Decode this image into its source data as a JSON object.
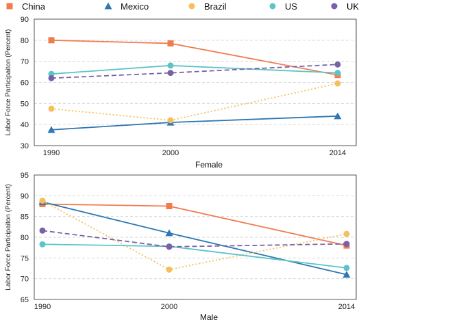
{
  "legend": [
    {
      "name": "China",
      "color": "#F07C4E",
      "marker": "square"
    },
    {
      "name": "Mexico",
      "color": "#2E77B3",
      "marker": "triangle"
    },
    {
      "name": "Brazil",
      "color": "#F5BF5A",
      "marker": "circle"
    },
    {
      "name": "US",
      "color": "#5CC3C7",
      "marker": "circle"
    },
    {
      "name": "UK",
      "color": "#7A60A8",
      "marker": "circle"
    }
  ],
  "chart_data": [
    {
      "type": "line",
      "xlabel": "Female",
      "ylabel": "Labor Force Participaiton (Percent)",
      "categories": [
        "1990",
        "2000",
        "2014"
      ],
      "x": [
        1990,
        2000,
        2014
      ],
      "ylim": [
        30,
        90
      ],
      "yticks": [
        30,
        40,
        50,
        60,
        70,
        80,
        90
      ],
      "grid": true,
      "series": [
        {
          "name": "China",
          "color": "#F07C4E",
          "marker": "square",
          "dash": "solid",
          "values": [
            80,
            78.5,
            63.5
          ]
        },
        {
          "name": "Mexico",
          "color": "#2E77B3",
          "marker": "triangle",
          "dash": "solid",
          "values": [
            37.5,
            41,
            44
          ]
        },
        {
          "name": "Brazil",
          "color": "#F5BF5A",
          "marker": "circle",
          "dash": "dotted",
          "values": [
            47.5,
            42,
            59.5
          ]
        },
        {
          "name": "US",
          "color": "#5CC3C7",
          "marker": "circle",
          "dash": "solid",
          "values": [
            64,
            68,
            64.5
          ]
        },
        {
          "name": "UK",
          "color": "#7A60A8",
          "marker": "circle",
          "dash": "dashed",
          "values": [
            62,
            64.5,
            68.5
          ]
        }
      ]
    },
    {
      "type": "line",
      "xlabel": "Male",
      "ylabel": "Labor Force Participaiton (Percent)",
      "categories": [
        "1990",
        "2000",
        "2014"
      ],
      "x": [
        1990,
        2000,
        2014
      ],
      "ylim": [
        65,
        95
      ],
      "yticks": [
        65,
        70,
        75,
        80,
        85,
        90,
        95
      ],
      "grid": true,
      "series": [
        {
          "name": "China",
          "color": "#F07C4E",
          "marker": "square",
          "dash": "solid",
          "values": [
            88,
            87.5,
            78
          ]
        },
        {
          "name": "Mexico",
          "color": "#2E77B3",
          "marker": "triangle",
          "dash": "solid",
          "values": [
            88.5,
            81,
            71
          ]
        },
        {
          "name": "Brazil",
          "color": "#F5BF5A",
          "marker": "circle",
          "dash": "dotted",
          "values": [
            88.8,
            72.2,
            80.8
          ]
        },
        {
          "name": "US",
          "color": "#5CC3C7",
          "marker": "circle",
          "dash": "solid",
          "values": [
            78.3,
            77.8,
            72.6
          ]
        },
        {
          "name": "UK",
          "color": "#7A60A8",
          "marker": "circle",
          "dash": "dashed",
          "values": [
            81.6,
            77.7,
            78.4
          ]
        }
      ]
    }
  ]
}
